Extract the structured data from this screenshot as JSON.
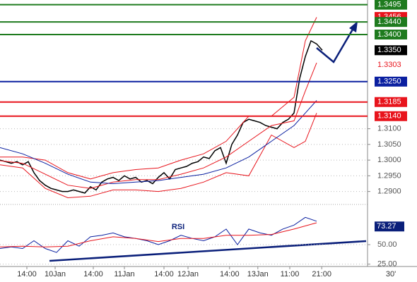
{
  "chart_data": [
    {
      "type": "price",
      "ylim": [
        1.287,
        1.351
      ],
      "xlim": [
        0,
        65
      ],
      "yticks": [
        {
          "value": 1.29,
          "label": "1.2900"
        },
        {
          "value": 1.295,
          "label": "1.2950"
        },
        {
          "value": 1.3,
          "label": "1.3000"
        },
        {
          "value": 1.305,
          "label": "1.3050"
        },
        {
          "value": 1.31,
          "label": "1.3100"
        }
      ],
      "levels": [
        {
          "value": 1.3495,
          "label": "1.3495",
          "color": "#1e7b1e",
          "line": true,
          "box": true
        },
        {
          "value": 1.3456,
          "label": "1.3456",
          "color": "#e8141c",
          "line": false,
          "box": true
        },
        {
          "value": 1.344,
          "label": "1.3440",
          "color": "#1e7b1e",
          "line": true,
          "box": true
        },
        {
          "value": 1.34,
          "label": "1.3400",
          "color": "#1e7b1e",
          "line": true,
          "box": true
        },
        {
          "value": 1.335,
          "label": "1.3350",
          "color": "#000000",
          "line": false,
          "box": true
        },
        {
          "value": 1.3303,
          "label": "1.3303",
          "color": "#e8141c",
          "line": false,
          "box": false
        },
        {
          "value": 1.325,
          "label": "1.3250",
          "color": "#0a1fa0",
          "line": true,
          "box": true
        },
        {
          "value": 1.3185,
          "label": "1.3185",
          "color": "#e8141c",
          "line": true,
          "box": true
        },
        {
          "value": 1.314,
          "label": "1.3140",
          "color": "#e8141c",
          "line": true,
          "box": true
        }
      ],
      "xticks": [
        {
          "value": 4.75,
          "label": "14:00"
        },
        {
          "value": 9.75,
          "label": "10Jan"
        },
        {
          "value": 16.5,
          "label": "14:00"
        },
        {
          "value": 22,
          "label": "11Jan"
        },
        {
          "value": 29,
          "label": "14:00"
        },
        {
          "value": 33.25,
          "label": "12Jan"
        },
        {
          "value": 40.6,
          "label": "14:00"
        },
        {
          "value": 45.6,
          "label": "13Jan"
        },
        {
          "value": 51.25,
          "label": "11:00"
        },
        {
          "value": 56.9,
          "label": "21:00"
        }
      ],
      "timeframe": "30'",
      "series": [
        {
          "color": "#000000",
          "x": [
            0,
            1,
            2,
            3,
            4,
            5,
            6,
            7,
            8,
            9,
            10,
            11,
            12,
            13,
            14,
            15,
            16,
            17,
            18,
            19,
            20,
            21,
            22,
            23,
            24,
            25,
            26,
            27,
            28,
            29,
            30,
            31,
            32,
            33,
            34,
            35,
            36,
            37,
            38,
            39,
            40,
            41,
            42,
            43,
            44,
            45,
            46,
            47,
            48,
            49,
            50,
            51,
            52,
            53,
            54,
            55,
            56,
            57
          ],
          "values": [
            1.3,
            1.2995,
            1.299,
            1.2995,
            1.2985,
            1.2995,
            1.296,
            1.2935,
            1.292,
            1.291,
            1.2905,
            1.29,
            1.29,
            1.2905,
            1.29,
            1.2895,
            1.2915,
            1.2905,
            1.293,
            1.294,
            1.2945,
            1.2935,
            1.295,
            1.294,
            1.2945,
            1.293,
            1.2935,
            1.2925,
            1.2945,
            1.296,
            1.294,
            1.297,
            1.2975,
            1.298,
            1.299,
            1.2995,
            1.301,
            1.3005,
            1.303,
            1.304,
            1.299,
            1.305,
            1.308,
            1.312,
            1.313,
            1.3125,
            1.312,
            1.311,
            1.3105,
            1.31,
            1.312,
            1.313,
            1.315,
            1.326,
            1.333,
            1.338,
            1.337,
            1.335
          ]
        },
        {
          "color": "#e8141c",
          "x": [
            0,
            4,
            8,
            12,
            16,
            20,
            24,
            28,
            32,
            36,
            40,
            44,
            48,
            52,
            54,
            56
          ],
          "values": [
            1.301,
            1.301,
            1.3,
            1.296,
            1.294,
            1.296,
            1.297,
            1.2975,
            1.3,
            1.302,
            1.306,
            1.314,
            1.314,
            1.32,
            1.338,
            1.3455
          ]
        },
        {
          "color": "#e8141c",
          "x": [
            0,
            4,
            8,
            12,
            16,
            20,
            24,
            28,
            32,
            36,
            40,
            44,
            48,
            52,
            54,
            56
          ],
          "values": [
            1.2998,
            1.299,
            1.2955,
            1.292,
            1.291,
            1.293,
            1.2938,
            1.2938,
            1.2955,
            1.2975,
            1.301,
            1.306,
            1.311,
            1.3125,
            1.322,
            1.331
          ]
        },
        {
          "color": "#e8141c",
          "x": [
            0,
            4,
            8,
            12,
            16,
            20,
            24,
            28,
            32,
            36,
            40,
            44,
            48,
            52,
            54,
            56
          ],
          "values": [
            1.2985,
            1.2975,
            1.291,
            1.288,
            1.2885,
            1.2905,
            1.2905,
            1.29,
            1.291,
            1.293,
            1.296,
            1.295,
            1.308,
            1.304,
            1.306,
            1.315
          ]
        },
        {
          "color": "#0a1fa0",
          "x": [
            0,
            4,
            8,
            12,
            16,
            20,
            24,
            28,
            32,
            36,
            40,
            44,
            48,
            52,
            54,
            56
          ],
          "values": [
            1.304,
            1.302,
            1.299,
            1.2955,
            1.293,
            1.2925,
            1.293,
            1.2935,
            1.2945,
            1.2955,
            1.2975,
            1.301,
            1.306,
            1.311,
            1.315,
            1.319
          ]
        }
      ]
    },
    {
      "type": "rsi",
      "title": "RSI",
      "ylim": [
        22,
        97
      ],
      "xlim": [
        0,
        65
      ],
      "yticks": [
        {
          "value": 50,
          "label": "50.00"
        },
        {
          "value": 25,
          "label": "25.00"
        }
      ],
      "current": {
        "value": 73.27,
        "label": "73.27"
      },
      "series": [
        {
          "color": "#0a1fa0",
          "x": [
            0,
            2,
            4,
            6,
            8,
            10,
            12,
            14,
            16,
            18,
            20,
            22,
            24,
            26,
            28,
            30,
            32,
            34,
            36,
            38,
            40,
            42,
            44,
            46,
            48,
            50,
            52,
            54,
            56
          ],
          "values": [
            45,
            47,
            45,
            55,
            45,
            40,
            55,
            48,
            60,
            62,
            65,
            60,
            58,
            55,
            50,
            55,
            62,
            58,
            55,
            60,
            70,
            50,
            70,
            65,
            62,
            70,
            75,
            85,
            80
          ]
        },
        {
          "color": "#e8141c",
          "x": [
            0,
            4,
            8,
            12,
            16,
            20,
            24,
            28,
            32,
            36,
            40,
            44,
            48,
            52,
            56
          ],
          "values": [
            47,
            48,
            47,
            48,
            55,
            60,
            58,
            54,
            58,
            58,
            62,
            62,
            63,
            70,
            78
          ]
        }
      ]
    }
  ]
}
